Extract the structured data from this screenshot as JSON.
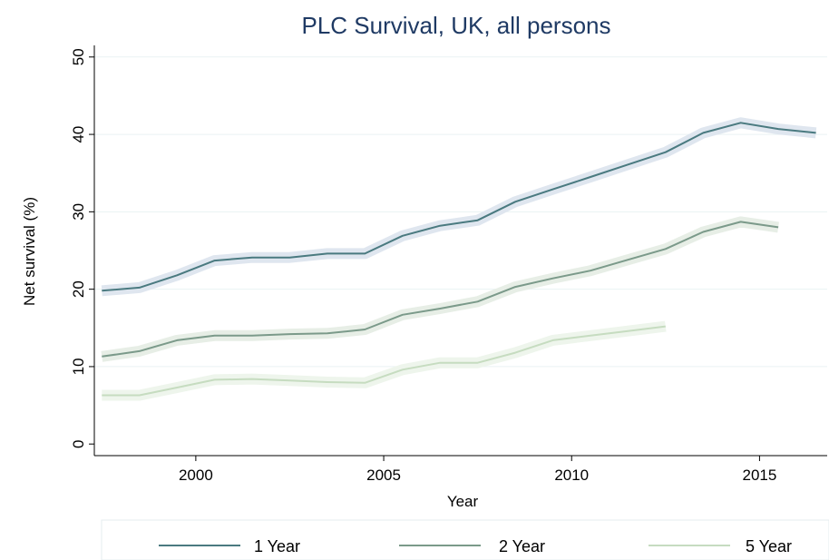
{
  "chart_data": {
    "type": "line",
    "title": "PLC Survival, UK, all persons",
    "xlabel": "Year",
    "ylabel": "Net survival (%)",
    "xlim": [
      1997.3,
      2016.8
    ],
    "ylim": [
      -1.5,
      51.5
    ],
    "xticks": [
      2000,
      2005,
      2010,
      2015
    ],
    "yticks": [
      0,
      10,
      20,
      30,
      40,
      50
    ],
    "grid": "horizontal",
    "legend_position": "bottom",
    "series": [
      {
        "name": "1 Year",
        "color": "#4a7a80",
        "band_color": "#dfe6ef",
        "x": [
          1997.5,
          1998.5,
          1999.5,
          2000.5,
          2001.5,
          2002.5,
          2003.5,
          2004.5,
          2005.5,
          2006.5,
          2007.5,
          2008.5,
          2009.5,
          2010.5,
          2011.5,
          2012.5,
          2013.5,
          2014.5,
          2015.5,
          2016.5
        ],
        "y": [
          19.8,
          20.2,
          21.8,
          23.7,
          24.1,
          24.1,
          24.6,
          24.6,
          26.9,
          28.2,
          28.9,
          31.3,
          32.9,
          34.5,
          36.1,
          37.7,
          40.2,
          41.5,
          40.7,
          40.2
        ]
      },
      {
        "name": "2 Year",
        "color": "#7b9a8a",
        "band_color": "#e7eee6",
        "x": [
          1997.5,
          1998.5,
          1999.5,
          2000.5,
          2001.5,
          2002.5,
          2003.5,
          2004.5,
          2005.5,
          2006.5,
          2007.5,
          2008.5,
          2009.5,
          2010.5,
          2011.5,
          2012.5,
          2013.5,
          2014.5,
          2015.5
        ],
        "y": [
          11.3,
          12.0,
          13.4,
          14.0,
          14.0,
          14.2,
          14.3,
          14.8,
          16.7,
          17.5,
          18.4,
          20.3,
          21.4,
          22.4,
          23.8,
          25.2,
          27.4,
          28.7,
          28.0
        ]
      },
      {
        "name": "5 Year",
        "color": "#c6dcc0",
        "band_color": "#eef5ec",
        "x": [
          1997.5,
          1998.5,
          1999.5,
          2000.5,
          2001.5,
          2002.5,
          2003.5,
          2004.5,
          2005.5,
          2006.5,
          2007.5,
          2008.5,
          2009.5,
          2010.5,
          2011.5,
          2012.5
        ],
        "y": [
          6.3,
          6.3,
          7.3,
          8.3,
          8.4,
          8.2,
          8.0,
          7.9,
          9.6,
          10.5,
          10.5,
          11.8,
          13.4,
          14.0,
          14.6,
          15.2
        ]
      }
    ]
  }
}
